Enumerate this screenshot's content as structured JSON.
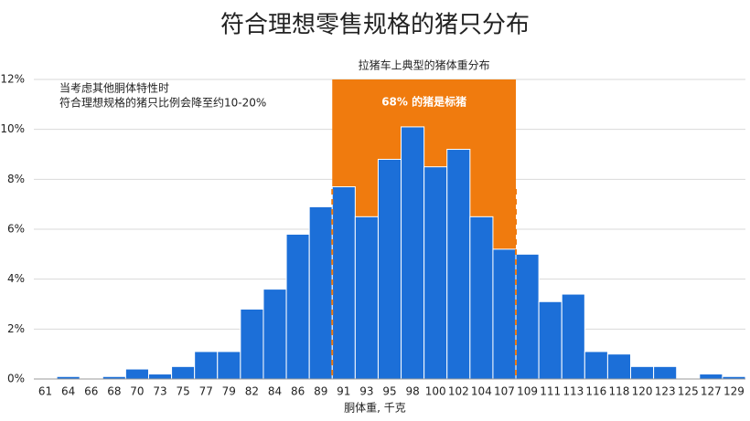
{
  "chart_data": {
    "type": "bar",
    "title": "符合理想零售规格的猪只分布",
    "x_label": "胴体重, 千克",
    "categories": [
      "61",
      "64",
      "66",
      "68",
      "70",
      "73",
      "75",
      "77",
      "79",
      "82",
      "84",
      "86",
      "89",
      "91",
      "93",
      "95",
      "98",
      "100",
      "102",
      "104",
      "107",
      "109",
      "111",
      "113",
      "116",
      "118",
      "120",
      "123",
      "125",
      "127",
      "129"
    ],
    "values": [
      0,
      0.1,
      0,
      0.1,
      0.4,
      0.2,
      0.5,
      1.1,
      1.1,
      2.8,
      3.6,
      5.8,
      6.9,
      7.7,
      6.5,
      8.8,
      10.1,
      8.5,
      9.2,
      6.5,
      5.2,
      5.0,
      3.1,
      3.4,
      1.1,
      1.0,
      0.5,
      0.5,
      0,
      0.2,
      0.1
    ],
    "color": "#1c6fd8",
    "ylim": [
      0,
      12
    ],
    "yticks": [
      {
        "value": 0,
        "label": "0%"
      },
      {
        "value": 2,
        "label": "2%"
      },
      {
        "value": 4,
        "label": "4%"
      },
      {
        "value": 6,
        "label": "6%"
      },
      {
        "value": 8,
        "label": "8%"
      },
      {
        "value": 10,
        "label": "10%"
      },
      {
        "value": 12,
        "label": "12%"
      }
    ],
    "grid": true,
    "highlight": {
      "label": "拉猪车上典型的猪体重分布",
      "text": "68% 的猪是标猪",
      "from": "91",
      "to": "107",
      "color": "#f07b0e"
    },
    "note": [
      "当考虑其他胴体特性时",
      "符合理想规格的猪只比例会降至约10-20%"
    ]
  }
}
